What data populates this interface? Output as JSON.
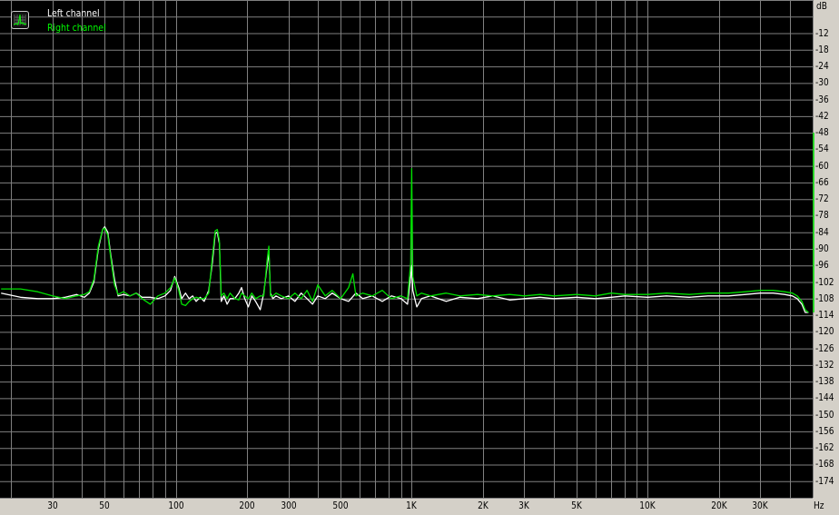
{
  "legend": {
    "left_label": "Left channel",
    "right_label": "Right channel",
    "icon": "spectrum-icon"
  },
  "chart_data": {
    "type": "line",
    "title": "",
    "xlabel": "Hz",
    "ylabel": "dB",
    "x_scale": "log",
    "xlim": [
      18,
      50000
    ],
    "ylim": [
      -180,
      0
    ],
    "grid": true,
    "legend_position": "top-left",
    "x_ticks": [
      {
        "value": 30,
        "label": "30"
      },
      {
        "value": 50,
        "label": "50"
      },
      {
        "value": 100,
        "label": "100"
      },
      {
        "value": 200,
        "label": "200"
      },
      {
        "value": 300,
        "label": "300"
      },
      {
        "value": 500,
        "label": "500"
      },
      {
        "value": 1000,
        "label": "1K"
      },
      {
        "value": 2000,
        "label": "2K"
      },
      {
        "value": 3000,
        "label": "3K"
      },
      {
        "value": 5000,
        "label": "5K"
      },
      {
        "value": 10000,
        "label": "10K"
      },
      {
        "value": 20000,
        "label": "20K"
      },
      {
        "value": 30000,
        "label": "30K"
      }
    ],
    "y_ticks": [
      -12,
      -18,
      -24,
      -30,
      -36,
      -42,
      -48,
      -54,
      -60,
      -66,
      -72,
      -78,
      -84,
      -90,
      -96,
      -102,
      -108,
      -114,
      -120,
      -126,
      -132,
      -138,
      -144,
      -150,
      -156,
      -162,
      -168,
      -174
    ],
    "series": [
      {
        "name": "Left channel",
        "color": "#ffffff",
        "points": [
          [
            18.2,
            -106
          ],
          [
            22,
            -107.5
          ],
          [
            26,
            -108
          ],
          [
            30,
            -108
          ],
          [
            34,
            -107.5
          ],
          [
            38,
            -106.5
          ],
          [
            41,
            -107.5
          ],
          [
            43,
            -106
          ],
          [
            45,
            -102
          ],
          [
            47,
            -90
          ],
          [
            49,
            -83
          ],
          [
            50,
            -82
          ],
          [
            51.5,
            -84
          ],
          [
            53,
            -92
          ],
          [
            55,
            -101
          ],
          [
            57,
            -107
          ],
          [
            60,
            -106.5
          ],
          [
            64,
            -107
          ],
          [
            68,
            -106
          ],
          [
            72,
            -107.5
          ],
          [
            78,
            -107.5
          ],
          [
            84,
            -108
          ],
          [
            90,
            -107
          ],
          [
            95,
            -105
          ],
          [
            99,
            -100
          ],
          [
            103,
            -104
          ],
          [
            106,
            -108
          ],
          [
            110,
            -106
          ],
          [
            114,
            -108
          ],
          [
            118,
            -107
          ],
          [
            122,
            -109
          ],
          [
            127,
            -107.5
          ],
          [
            132,
            -109
          ],
          [
            138,
            -105
          ],
          [
            143,
            -95
          ],
          [
            147,
            -84.5
          ],
          [
            150,
            -84
          ],
          [
            153,
            -88
          ],
          [
            156,
            -109
          ],
          [
            160,
            -107
          ],
          [
            165,
            -110
          ],
          [
            170,
            -108
          ],
          [
            178,
            -108
          ],
          [
            185,
            -106
          ],
          [
            190,
            -104
          ],
          [
            196,
            -108
          ],
          [
            203,
            -111
          ],
          [
            210,
            -107
          ],
          [
            218,
            -109
          ],
          [
            228,
            -112
          ],
          [
            236,
            -106
          ],
          [
            244,
            -96
          ],
          [
            248,
            -91
          ],
          [
            252,
            -106
          ],
          [
            258,
            -108
          ],
          [
            266,
            -107
          ],
          [
            280,
            -108
          ],
          [
            300,
            -107
          ],
          [
            320,
            -109
          ],
          [
            340,
            -106
          ],
          [
            360,
            -108
          ],
          [
            380,
            -110
          ],
          [
            400,
            -107
          ],
          [
            430,
            -108
          ],
          [
            460,
            -106
          ],
          [
            500,
            -108
          ],
          [
            540,
            -109
          ],
          [
            580,
            -106
          ],
          [
            620,
            -108
          ],
          [
            680,
            -107
          ],
          [
            750,
            -109
          ],
          [
            820,
            -107
          ],
          [
            900,
            -108
          ],
          [
            960,
            -110
          ],
          [
            990,
            -100
          ],
          [
            1000,
            -96
          ],
          [
            1010,
            -105
          ],
          [
            1050,
            -111
          ],
          [
            1100,
            -108
          ],
          [
            1200,
            -107
          ],
          [
            1400,
            -109
          ],
          [
            1600,
            -107.5
          ],
          [
            1900,
            -108
          ],
          [
            2200,
            -107
          ],
          [
            2600,
            -108.5
          ],
          [
            3000,
            -108
          ],
          [
            3500,
            -107.5
          ],
          [
            4000,
            -108
          ],
          [
            5000,
            -107.5
          ],
          [
            6000,
            -108
          ],
          [
            7000,
            -107.5
          ],
          [
            8000,
            -107
          ],
          [
            10000,
            -107.5
          ],
          [
            12000,
            -107
          ],
          [
            15000,
            -107.5
          ],
          [
            18000,
            -107
          ],
          [
            22000,
            -107
          ],
          [
            26000,
            -106.5
          ],
          [
            30000,
            -106
          ],
          [
            34000,
            -106
          ],
          [
            38000,
            -106.5
          ],
          [
            41000,
            -107
          ],
          [
            43000,
            -108
          ],
          [
            45000,
            -110
          ],
          [
            46500,
            -113
          ],
          [
            48000,
            -113
          ]
        ]
      },
      {
        "name": "Right channel",
        "color": "#00e000",
        "points": [
          [
            18.2,
            -104.5
          ],
          [
            22,
            -104.5
          ],
          [
            26,
            -105.5
          ],
          [
            30,
            -107
          ],
          [
            34,
            -108
          ],
          [
            38,
            -107
          ],
          [
            41,
            -106.5
          ],
          [
            43,
            -105.5
          ],
          [
            45,
            -101
          ],
          [
            47,
            -89
          ],
          [
            49,
            -83
          ],
          [
            50,
            -82.5
          ],
          [
            51.5,
            -85
          ],
          [
            53,
            -93
          ],
          [
            55,
            -103
          ],
          [
            57,
            -106.5
          ],
          [
            60,
            -105.5
          ],
          [
            64,
            -107
          ],
          [
            68,
            -106
          ],
          [
            72,
            -108
          ],
          [
            78,
            -110
          ],
          [
            84,
            -107
          ],
          [
            90,
            -106
          ],
          [
            95,
            -104
          ],
          [
            99,
            -100.5
          ],
          [
            103,
            -105
          ],
          [
            106,
            -110
          ],
          [
            110,
            -110.5
          ],
          [
            114,
            -109
          ],
          [
            118,
            -108
          ],
          [
            122,
            -107.5
          ],
          [
            127,
            -108
          ],
          [
            132,
            -108
          ],
          [
            138,
            -106
          ],
          [
            143,
            -93
          ],
          [
            147,
            -83.5
          ],
          [
            150,
            -83
          ],
          [
            153,
            -87
          ],
          [
            156,
            -107
          ],
          [
            160,
            -106
          ],
          [
            165,
            -108
          ],
          [
            170,
            -106
          ],
          [
            178,
            -108
          ],
          [
            185,
            -108.5
          ],
          [
            190,
            -106
          ],
          [
            196,
            -107
          ],
          [
            203,
            -108
          ],
          [
            210,
            -106
          ],
          [
            218,
            -108
          ],
          [
            228,
            -107
          ],
          [
            236,
            -107
          ],
          [
            244,
            -94
          ],
          [
            248,
            -89
          ],
          [
            252,
            -107
          ],
          [
            258,
            -107
          ],
          [
            266,
            -106
          ],
          [
            280,
            -107
          ],
          [
            300,
            -108
          ],
          [
            320,
            -106
          ],
          [
            340,
            -108
          ],
          [
            360,
            -105
          ],
          [
            380,
            -109
          ],
          [
            400,
            -103
          ],
          [
            430,
            -107
          ],
          [
            460,
            -105
          ],
          [
            500,
            -108
          ],
          [
            540,
            -104
          ],
          [
            563,
            -99
          ],
          [
            580,
            -107
          ],
          [
            620,
            -106
          ],
          [
            680,
            -107
          ],
          [
            750,
            -105
          ],
          [
            820,
            -108
          ],
          [
            900,
            -107
          ],
          [
            960,
            -108
          ],
          [
            990,
            -95
          ],
          [
            1000,
            -61
          ],
          [
            1010,
            -100
          ],
          [
            1050,
            -107
          ],
          [
            1100,
            -106
          ],
          [
            1200,
            -107
          ],
          [
            1400,
            -106
          ],
          [
            1600,
            -107
          ],
          [
            1900,
            -106.5
          ],
          [
            2200,
            -107
          ],
          [
            2600,
            -106.5
          ],
          [
            3000,
            -107
          ],
          [
            3500,
            -106.5
          ],
          [
            4000,
            -107
          ],
          [
            5000,
            -106.5
          ],
          [
            6000,
            -107
          ],
          [
            7000,
            -106
          ],
          [
            8000,
            -106.5
          ],
          [
            10000,
            -106.5
          ],
          [
            12000,
            -106
          ],
          [
            15000,
            -106.5
          ],
          [
            18000,
            -106
          ],
          [
            22000,
            -106
          ],
          [
            26000,
            -105.5
          ],
          [
            30000,
            -105
          ],
          [
            34000,
            -105
          ],
          [
            38000,
            -105.5
          ],
          [
            41000,
            -106
          ],
          [
            43000,
            -107
          ],
          [
            45000,
            -109
          ],
          [
            46500,
            -112
          ],
          [
            48000,
            -113
          ]
        ]
      }
    ]
  }
}
